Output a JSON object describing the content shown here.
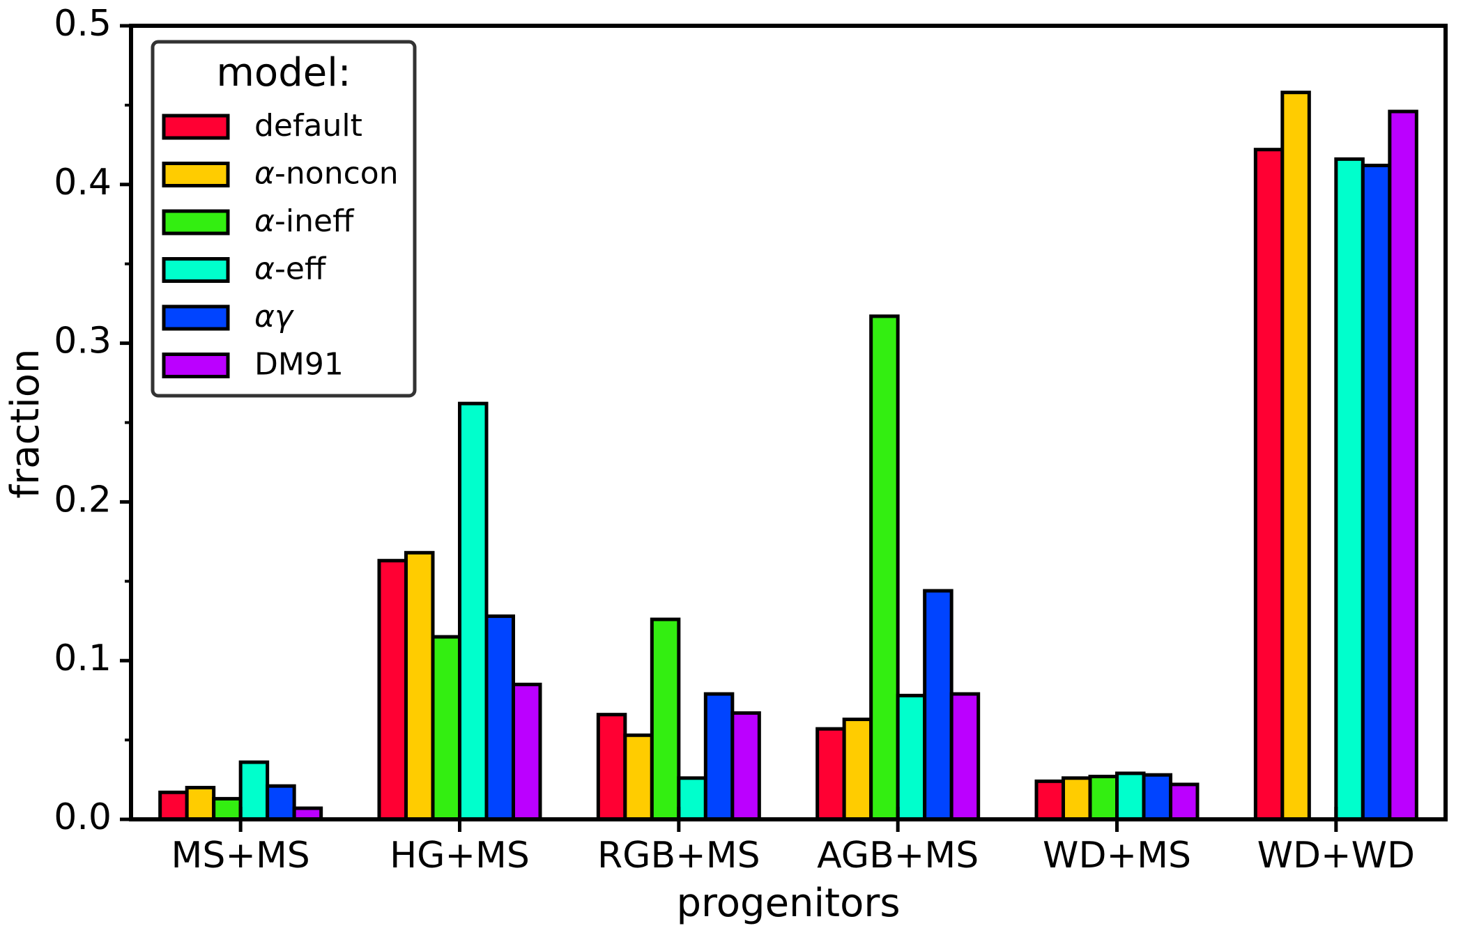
{
  "chart_data": {
    "type": "bar",
    "xlabel": "progenitors",
    "ylabel": "fraction",
    "ylim": [
      0,
      0.5
    ],
    "yticks": [
      "0.0",
      "0.1",
      "0.2",
      "0.3",
      "0.4",
      "0.5"
    ],
    "categories": [
      "MS+MS",
      "HG+MS",
      "RGB+MS",
      "AGB+MS",
      "WD+MS",
      "WD+WD"
    ],
    "legend": {
      "title": "model:",
      "placement": "top-left"
    },
    "grid": false,
    "series": [
      {
        "name": "default",
        "label_prefix": "",
        "label_main": "default",
        "color": "#ff0033",
        "values": [
          0.017,
          0.163,
          0.066,
          0.057,
          0.024,
          0.422
        ]
      },
      {
        "name": "α-noncon",
        "label_prefix": "α",
        "label_main": "-noncon",
        "color": "#ffcc00",
        "values": [
          0.02,
          0.168,
          0.053,
          0.063,
          0.026,
          0.458
        ]
      },
      {
        "name": "α-ineff",
        "label_prefix": "α",
        "label_main": "-ineff",
        "color": "#33ee11",
        "values": [
          0.013,
          0.115,
          0.126,
          0.317,
          0.027,
          0.0
        ]
      },
      {
        "name": "α-eff",
        "label_prefix": "α",
        "label_main": "-eff",
        "color": "#00ffcc",
        "values": [
          0.036,
          0.262,
          0.026,
          0.078,
          0.029,
          0.416
        ]
      },
      {
        "name": "αγ",
        "label_prefix": "αγ",
        "label_main": "",
        "color": "#0044ff",
        "values": [
          0.021,
          0.128,
          0.079,
          0.144,
          0.028,
          0.412
        ]
      },
      {
        "name": "DM91",
        "label_prefix": "",
        "label_main": "DM91",
        "color": "#bb00ff",
        "values": [
          0.007,
          0.085,
          0.067,
          0.079,
          0.022,
          0.446
        ]
      }
    ]
  }
}
